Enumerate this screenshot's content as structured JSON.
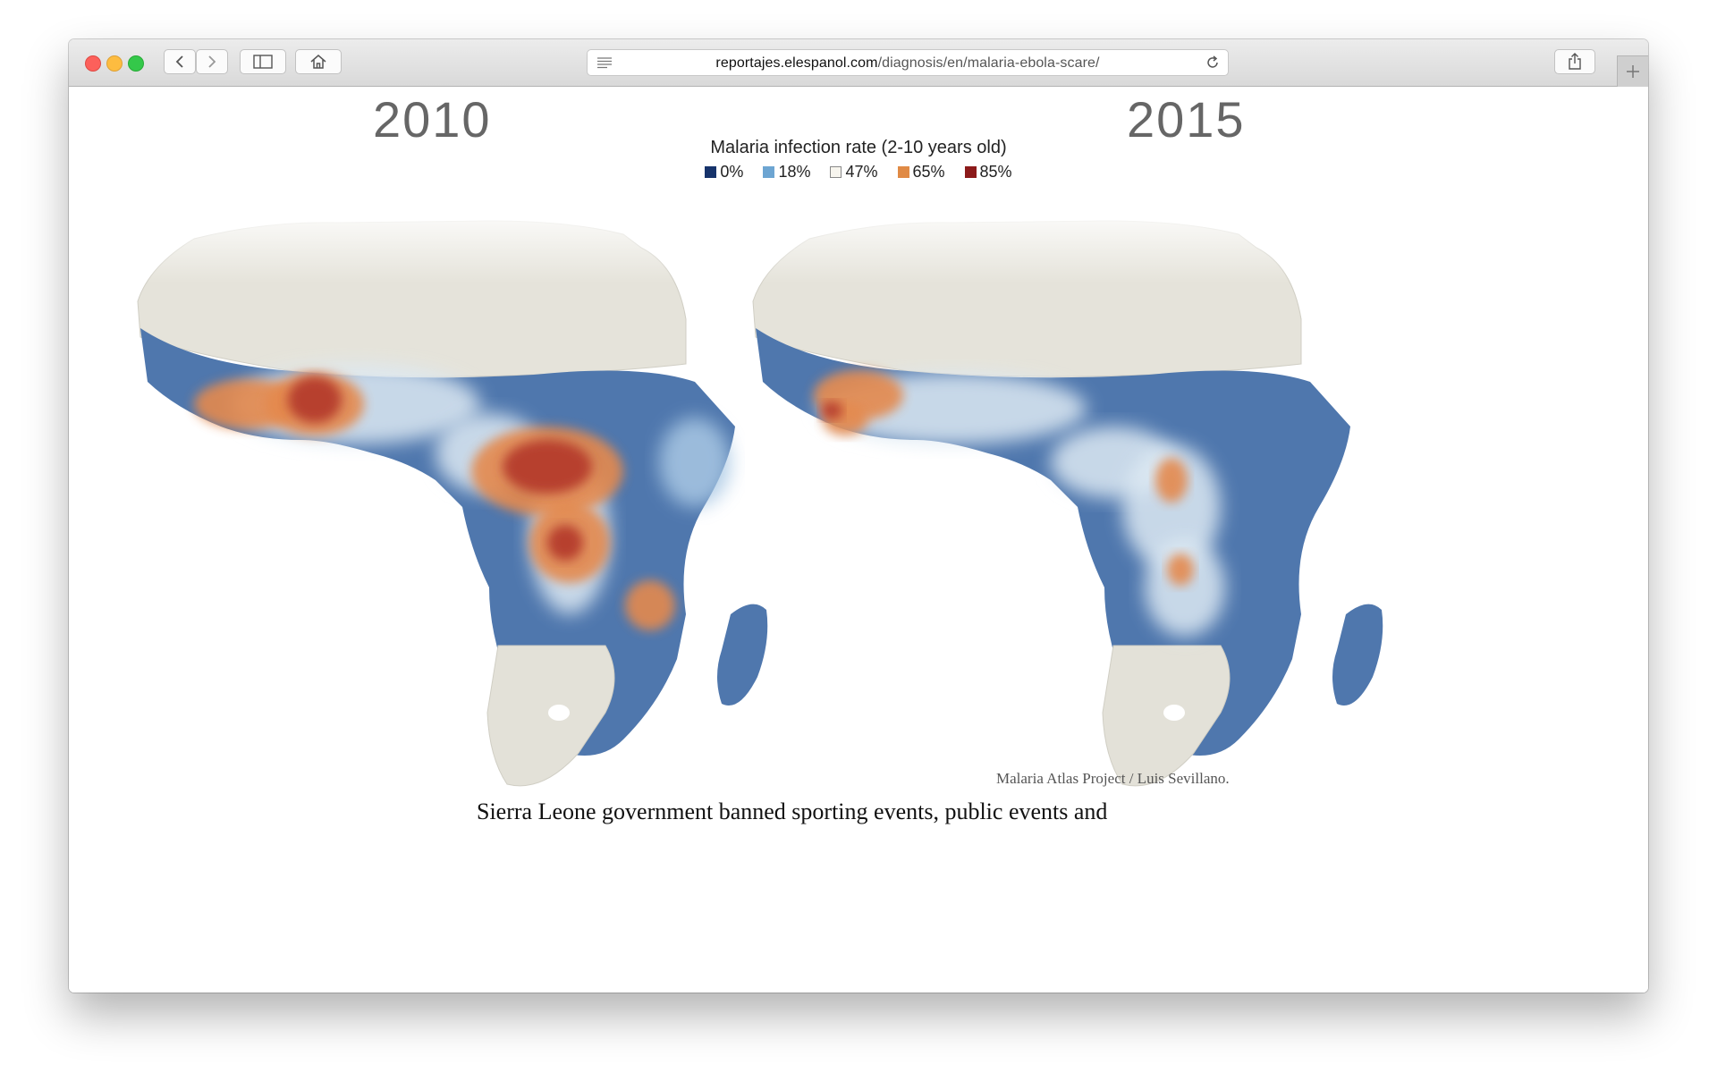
{
  "browser": {
    "url_host": "reportajes.elespanol.com",
    "url_path": "/diagnosis/en/malaria-ebola-scare/",
    "icons": {
      "back": "chevron-left-icon",
      "forward": "chevron-right-icon",
      "sidebar": "sidebar-icon",
      "home": "home-icon",
      "reader": "reader-icon",
      "reload": "reload-icon",
      "share": "share-icon",
      "new_tab": "plus-icon"
    }
  },
  "figure": {
    "left_title": "2010",
    "right_title": "2015",
    "legend_title": "Malaria infection rate (2-10 years old)",
    "legend": [
      {
        "label": "0%",
        "color": "#16336b"
      },
      {
        "label": "18%",
        "color": "#6da5d2"
      },
      {
        "label": "47%",
        "color": "#f7f5ee"
      },
      {
        "label": "65%",
        "color": "#e08a45"
      },
      {
        "label": "85%",
        "color": "#8c1a1a"
      }
    ],
    "credit": "Malaria Atlas Project / Luis Sevillano.",
    "map_colors": {
      "sahara": "#e5e3da",
      "south": "#e3e1d8",
      "low": "#4f77ad",
      "mid": "#a9c8e4",
      "pale": "#dde9f3",
      "high": "#e4894e",
      "very_high": "#b7412e"
    }
  },
  "article": {
    "text": "Sierra Leone government banned sporting events, public events and"
  }
}
